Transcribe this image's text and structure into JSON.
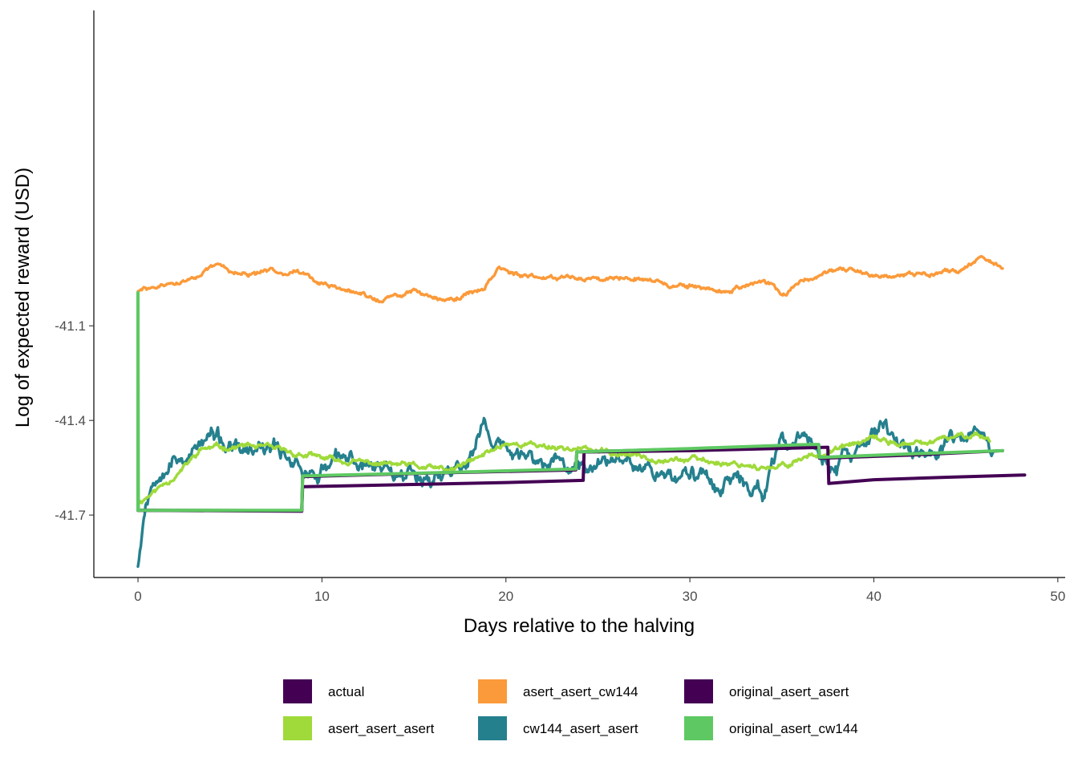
{
  "chart_data": {
    "type": "line",
    "title": "",
    "xlabel": "Days relative to the halving",
    "ylabel": "Log of expected reward (USD)",
    "xlim": [
      -2.4,
      50.4
    ],
    "ylim": [
      -41.898,
      -40.1
    ],
    "xticks": [
      0,
      10,
      20,
      30,
      40,
      50
    ],
    "yticks": [
      -41.7,
      -41.4,
      -41.1
    ],
    "legend_position": "bottom",
    "series": [
      {
        "name": "actual",
        "color": "#440154",
        "kind": "step",
        "points": [
          [
            0,
            -41.685
          ],
          [
            8.9,
            -41.688
          ],
          [
            8.95,
            -41.61
          ],
          [
            15,
            -41.603
          ],
          [
            20,
            -41.597
          ],
          [
            24.2,
            -41.59
          ],
          [
            24.25,
            -41.5
          ],
          [
            30,
            -41.496
          ],
          [
            37.5,
            -41.485
          ],
          [
            37.55,
            -41.6
          ],
          [
            40,
            -41.588
          ],
          [
            44,
            -41.58
          ],
          [
            48.2,
            -41.573
          ]
        ]
      },
      {
        "name": "asert_asert_asert",
        "color": "#9FDA3A",
        "kind": "noise",
        "base": [
          [
            0,
            -41.66
          ],
          [
            1,
            -41.62
          ],
          [
            2.5,
            -41.55
          ],
          [
            3.5,
            -41.49
          ],
          [
            6,
            -41.48
          ],
          [
            9,
            -41.51
          ],
          [
            11,
            -41.53
          ],
          [
            14,
            -41.54
          ],
          [
            17,
            -41.56
          ],
          [
            18.5,
            -41.52
          ],
          [
            20,
            -41.47
          ],
          [
            24,
            -41.49
          ],
          [
            26.5,
            -41.51
          ],
          [
            29,
            -41.52
          ],
          [
            31,
            -41.53
          ],
          [
            33.5,
            -41.54
          ],
          [
            34.5,
            -41.56
          ],
          [
            36,
            -41.52
          ],
          [
            37.5,
            -41.5
          ],
          [
            40,
            -41.46
          ],
          [
            42,
            -41.48
          ],
          [
            44,
            -41.46
          ],
          [
            45.5,
            -41.44
          ],
          [
            46.3,
            -41.46
          ]
        ],
        "amp": 0.012,
        "seed": 11
      },
      {
        "name": "asert_asert_cw144",
        "color": "#FB9A3A",
        "kind": "noise",
        "base": [
          [
            0,
            -40.99
          ],
          [
            2.5,
            -40.96
          ],
          [
            4.3,
            -40.91
          ],
          [
            6,
            -40.94
          ],
          [
            8.5,
            -40.92
          ],
          [
            10,
            -40.97
          ],
          [
            13.3,
            -41.02
          ],
          [
            15,
            -40.99
          ],
          [
            17,
            -41.02
          ],
          [
            18.8,
            -40.98
          ],
          [
            19.6,
            -40.91
          ],
          [
            21,
            -40.95
          ],
          [
            23,
            -40.94
          ],
          [
            24.5,
            -40.95
          ],
          [
            27,
            -40.94
          ],
          [
            29,
            -40.97
          ],
          [
            32,
            -40.99
          ],
          [
            34,
            -40.96
          ],
          [
            35.2,
            -41.0
          ],
          [
            36,
            -40.96
          ],
          [
            37.5,
            -40.93
          ],
          [
            39,
            -40.93
          ],
          [
            41,
            -40.94
          ],
          [
            43,
            -40.93
          ],
          [
            44.5,
            -40.93
          ],
          [
            45.8,
            -40.88
          ],
          [
            47,
            -40.92
          ]
        ],
        "amp": 0.01,
        "seed": 29
      },
      {
        "name": "cw144_asert_asert",
        "color": "#25808E",
        "kind": "noise",
        "base": [
          [
            0,
            -41.85
          ],
          [
            0.4,
            -41.66
          ],
          [
            1.2,
            -41.53
          ],
          [
            3,
            -41.5
          ],
          [
            4,
            -41.45
          ],
          [
            5.5,
            -41.51
          ],
          [
            8,
            -41.5
          ],
          [
            9.5,
            -41.57
          ],
          [
            11,
            -41.53
          ],
          [
            14,
            -41.55
          ],
          [
            16.5,
            -41.58
          ],
          [
            18,
            -41.52
          ],
          [
            18.8,
            -41.42
          ],
          [
            19.5,
            -41.48
          ],
          [
            21,
            -41.52
          ],
          [
            23.5,
            -41.55
          ],
          [
            25,
            -41.54
          ],
          [
            26.5,
            -41.49
          ],
          [
            28,
            -41.56
          ],
          [
            31,
            -41.58
          ],
          [
            34,
            -41.62
          ],
          [
            35,
            -41.49
          ],
          [
            36.5,
            -41.46
          ],
          [
            38,
            -41.56
          ],
          [
            39.5,
            -41.48
          ],
          [
            40.5,
            -41.42
          ],
          [
            42,
            -41.49
          ],
          [
            43.5,
            -41.51
          ],
          [
            45,
            -41.45
          ],
          [
            45.8,
            -41.41
          ],
          [
            46.5,
            -41.52
          ]
        ],
        "amp": 0.036,
        "seed": 53
      },
      {
        "name": "original_asert_asert",
        "color": "#440154",
        "kind": "step",
        "points": [
          [
            0,
            -41.685
          ],
          [
            8.9,
            -41.686
          ],
          [
            8.95,
            -41.578
          ],
          [
            16,
            -41.567
          ],
          [
            23.8,
            -41.557
          ],
          [
            23.85,
            -41.5
          ],
          [
            30,
            -41.49
          ],
          [
            36,
            -41.478
          ],
          [
            37,
            -41.478
          ],
          [
            37.05,
            -41.52
          ],
          [
            42,
            -41.51
          ],
          [
            47,
            -41.496
          ]
        ]
      },
      {
        "name": "original_asert_cw144",
        "color": "#5EC962",
        "kind": "step",
        "points": [
          [
            0,
            -41.685
          ],
          [
            0,
            -40.995
          ],
          [
            0.02,
            -41.685
          ],
          [
            8.9,
            -41.685
          ],
          [
            8.95,
            -41.576
          ],
          [
            16,
            -41.566
          ],
          [
            23.8,
            -41.554
          ],
          [
            23.85,
            -41.5
          ],
          [
            30,
            -41.489
          ],
          [
            36,
            -41.477
          ],
          [
            37,
            -41.476
          ],
          [
            37.05,
            -41.517
          ],
          [
            42,
            -41.506
          ],
          [
            47,
            -41.496
          ]
        ]
      }
    ]
  }
}
